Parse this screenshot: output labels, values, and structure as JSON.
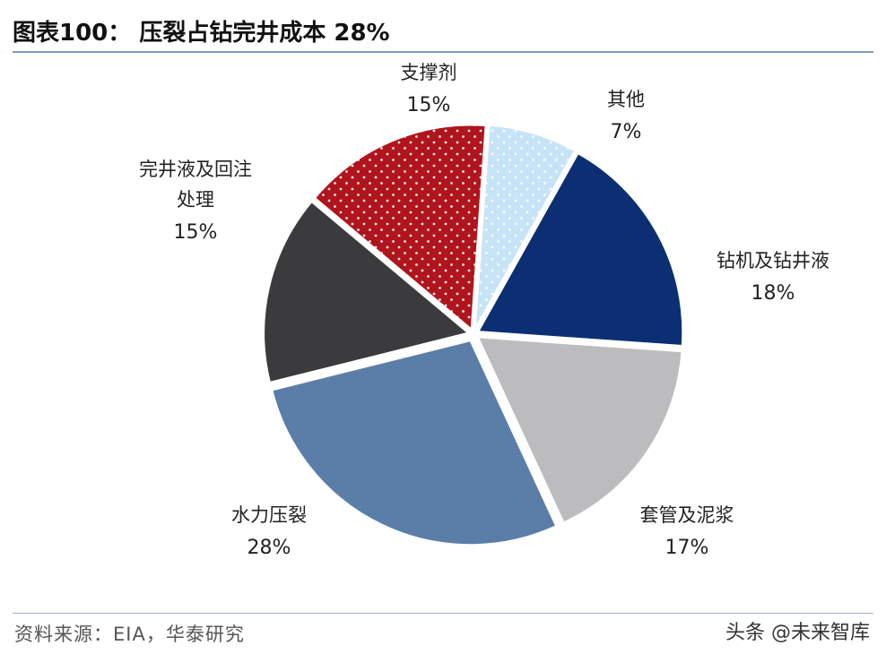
{
  "title": "图表100：  压裂占钻完井成本 28%",
  "source": "资料来源：EIA，华泰研究",
  "watermark": "头条 @未来智库",
  "chart_data": {
    "type": "pie",
    "title": "图表100：  压裂占钻完井成本 28%",
    "start_category": "其他",
    "direction": "clockwise",
    "slices": [
      {
        "name": "其他",
        "label_lines": [
          "其他"
        ],
        "value": 7,
        "value_label": "7%",
        "color": "#c7e4f7",
        "pattern": "dots-white"
      },
      {
        "name": "钻机及钻井液",
        "label_lines": [
          "钻机及钻井液"
        ],
        "value": 18,
        "value_label": "18%",
        "color": "#0b2f72",
        "pattern": "none"
      },
      {
        "name": "套管及泥浆",
        "label_lines": [
          "套管及泥浆"
        ],
        "value": 17,
        "value_label": "17%",
        "color": "#bcbcbe",
        "pattern": "none"
      },
      {
        "name": "水力压裂",
        "label_lines": [
          "水力压裂"
        ],
        "value": 28,
        "value_label": "28%",
        "color": "#5b7ea9",
        "pattern": "none"
      },
      {
        "name": "完井液及回注处理",
        "label_lines": [
          "完井液及回注",
          "处理"
        ],
        "value": 15,
        "value_label": "15%",
        "color": "#3b3b3d",
        "pattern": "none"
      },
      {
        "name": "支撑剂",
        "label_lines": [
          "支撑剂"
        ],
        "value": 15,
        "value_label": "15%",
        "color": "#b0141c",
        "pattern": "dots-white"
      }
    ]
  }
}
